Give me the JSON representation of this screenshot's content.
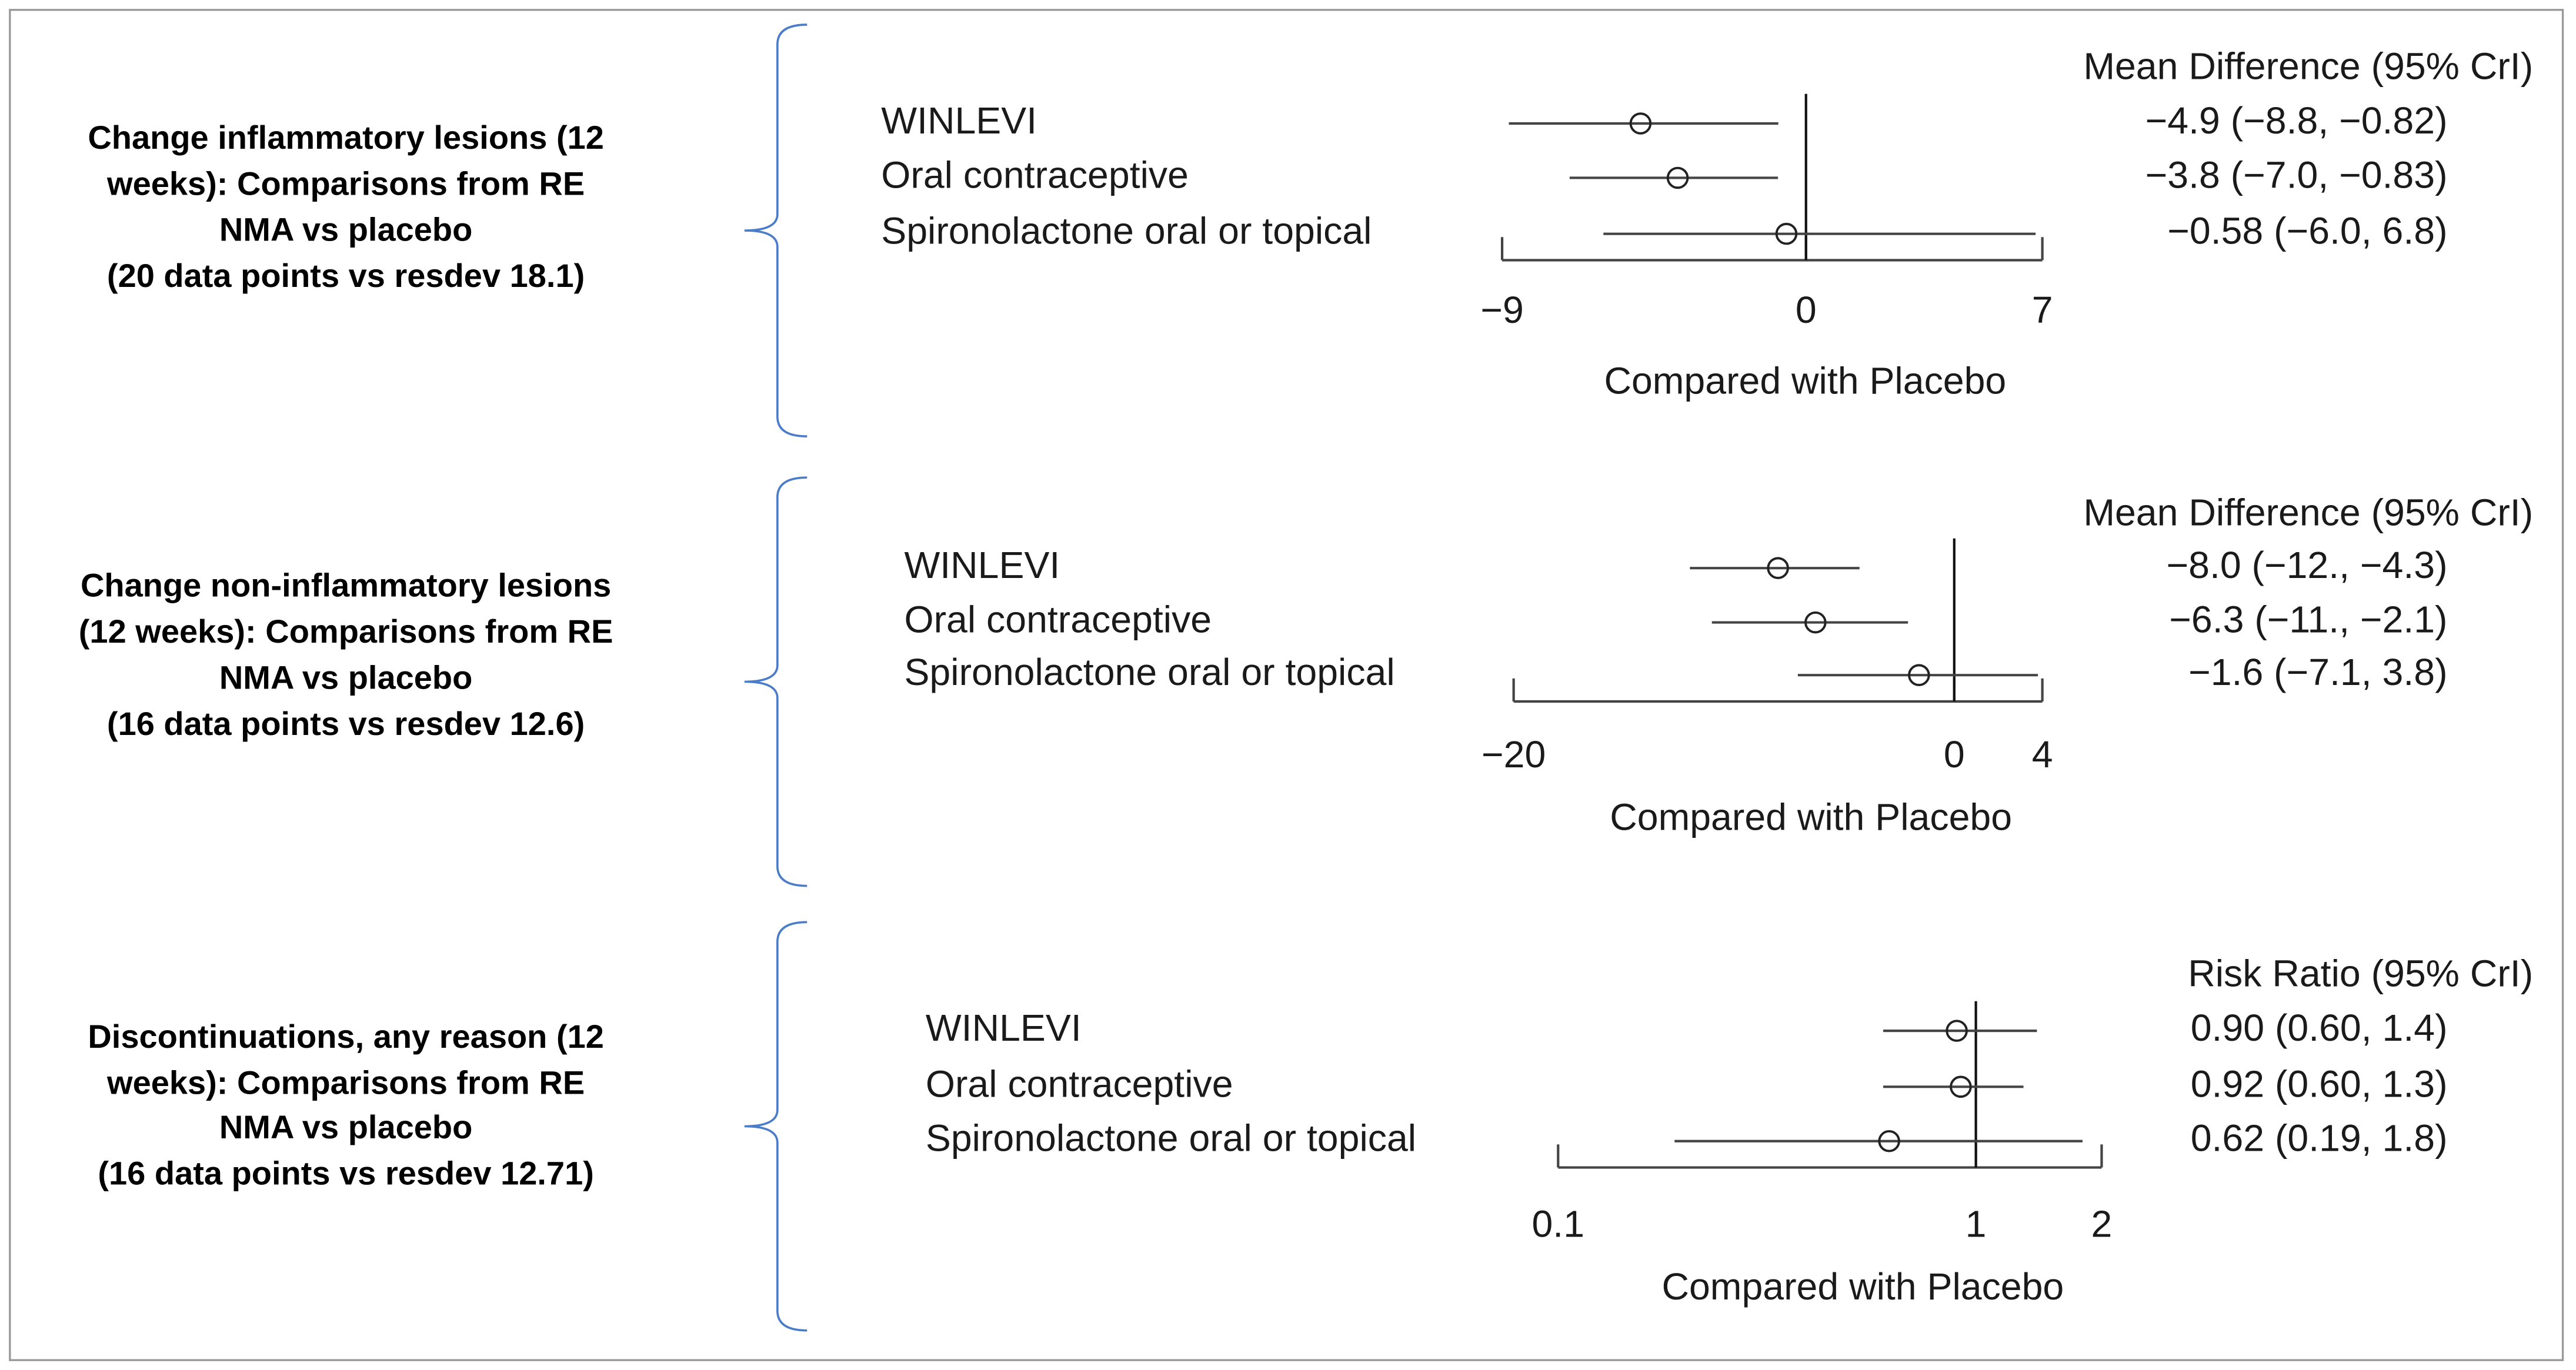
{
  "chart_data": [
    {
      "type": "forest",
      "description": [
        "Change inflammatory lesions (12",
        "weeks): Comparisons from RE",
        "NMA vs placebo",
        "(20 data points vs resdev 18.1)"
      ],
      "header": "Mean Difference (95% CrI)",
      "categories": [
        "WINLEVI",
        "Oral contraceptive",
        "Spironolactone oral or topical"
      ],
      "values": [
        -4.9,
        -3.8,
        -0.58
      ],
      "lower": [
        -8.8,
        -7.0,
        -6.0
      ],
      "upper": [
        -0.82,
        -0.83,
        6.8
      ],
      "value_labels": [
        "−4.9 (−8.8, −0.82)",
        "−3.8 (−7.0, −0.83)",
        "−0.58 (−6.0, 6.8)"
      ],
      "xlim": [
        -9,
        7
      ],
      "xticks": [
        {
          "value": -9,
          "label": "−9"
        },
        0,
        7
      ],
      "reference_line": 0,
      "xlabel": "Compared with Placebo",
      "log_x": false
    },
    {
      "type": "forest",
      "description": [
        "Change non-inflammatory lesions",
        "(12 weeks): Comparisons from RE",
        "NMA vs placebo",
        "(16 data points vs resdev 12.6)"
      ],
      "header": "Mean Difference (95% CrI)",
      "categories": [
        "WINLEVI",
        "Oral contraceptive",
        "Spironolactone oral or topical"
      ],
      "values": [
        -8.0,
        -6.3,
        -1.6
      ],
      "lower": [
        -12,
        -11,
        -7.1
      ],
      "upper": [
        -4.3,
        -2.1,
        3.8
      ],
      "value_labels": [
        "−8.0 (−12., −4.3)",
        "−6.3 (−11., −2.1)",
        "−1.6 (−7.1, 3.8)"
      ],
      "xlim": [
        -20,
        4
      ],
      "xticks": [
        {
          "value": -20,
          "label": "−20"
        },
        0,
        4
      ],
      "reference_line": 0,
      "xlabel": "Compared with Placebo",
      "log_x": false
    },
    {
      "type": "forest",
      "description": [
        "Discontinuations, any reason (12",
        "weeks): Comparisons from RE",
        "NMA vs placebo",
        "(16 data points vs resdev 12.71)"
      ],
      "header": "Risk Ratio (95% CrI)",
      "categories": [
        "WINLEVI",
        "Oral contraceptive",
        "Spironolactone oral or topical"
      ],
      "values": [
        0.9,
        0.92,
        0.62
      ],
      "lower": [
        0.6,
        0.6,
        0.19
      ],
      "upper": [
        1.4,
        1.3,
        1.8
      ],
      "value_labels": [
        "0.90 (0.60, 1.4)",
        "0.92 (0.60, 1.3)",
        "0.62 (0.19, 1.8)"
      ],
      "xlim": [
        0.1,
        2
      ],
      "xticks": [
        0.1,
        1,
        2
      ],
      "reference_line": 1,
      "xlabel": "Compared with Placebo",
      "log_x": true
    }
  ]
}
